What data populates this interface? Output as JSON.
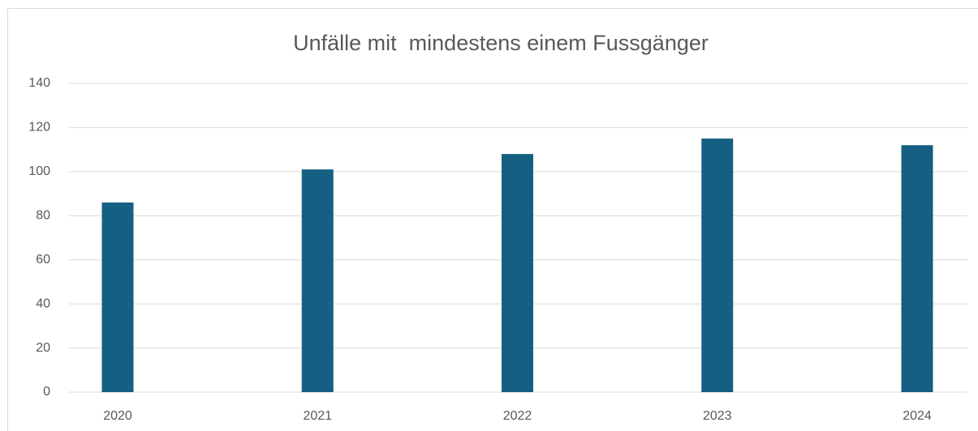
{
  "chart_data": {
    "type": "bar",
    "title": "Unfälle mit  mindestens einem Fussgänger",
    "categories": [
      "2020",
      "2021",
      "2022",
      "2023",
      "2024"
    ],
    "values": [
      86,
      101,
      108,
      115,
      112
    ],
    "color": "#155f82",
    "ylim": [
      0,
      140
    ],
    "yticks": [
      0,
      20,
      40,
      60,
      80,
      100,
      120,
      140
    ],
    "grid": true
  }
}
